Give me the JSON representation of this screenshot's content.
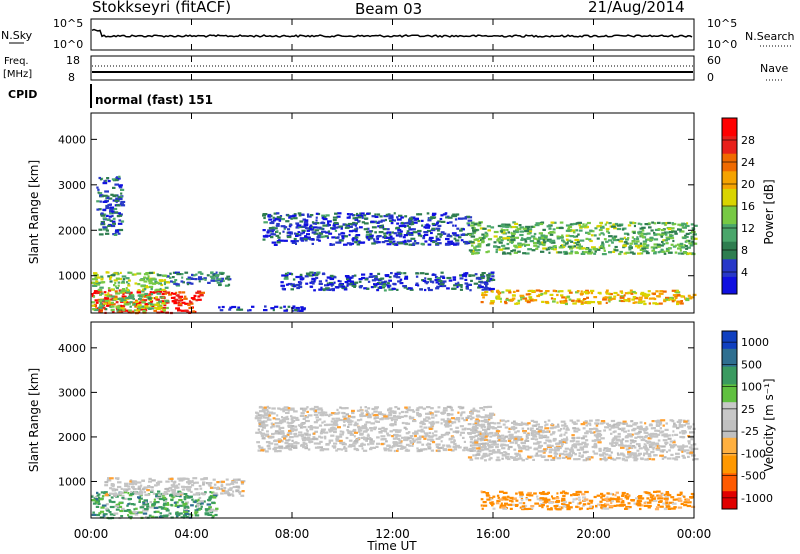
{
  "header": {
    "station": "Stokkseyri (fitACF)",
    "beam": "Beam 03",
    "date": "21/Aug/2014"
  },
  "nsky_panel": {
    "left_label": "N.Sky",
    "right_label": "N.Search",
    "left_ticks": [
      "10^5",
      "10^0"
    ],
    "right_ticks": [
      "10^5",
      "10^0"
    ]
  },
  "freq_panel": {
    "left_label_line1": "Freq.",
    "left_label_line2": "[MHz]",
    "right_label": "Nave",
    "left_ticks": [
      "18",
      "8"
    ],
    "right_ticks": [
      "60",
      "0"
    ]
  },
  "cpid_panel": {
    "label": "CPID",
    "value": "normal (fast) 151"
  },
  "colors": {
    "power_scale": [
      "#1010e0",
      "#2838c8",
      "#2e7d4f",
      "#4aa66b",
      "#77c944",
      "#d9d400",
      "#f5a300",
      "#f06a00",
      "#e8201a",
      "#ff0000"
    ],
    "velocity_scale": [
      "#e00000",
      "#ff5a00",
      "#ff9800",
      "#ffb040",
      "#c0c0c0",
      "#c8c8c8",
      "#60c040",
      "#3a9a60",
      "#2f6f90",
      "#1040c0"
    ]
  },
  "chart_data": [
    {
      "type": "heatmap",
      "title": "Power",
      "ylabel": "Slant Range [km]",
      "xlabel": "Time UT",
      "x_ticks": [
        "00:00",
        "04:00",
        "08:00",
        "12:00",
        "16:00",
        "20:00",
        "00:00"
      ],
      "y_ticks": [
        "1000",
        "2000",
        "3000",
        "4000"
      ],
      "ylim": [
        180,
        4580
      ],
      "xlim_hours": [
        0,
        24
      ],
      "colorbar_label": "Power [dB]",
      "colorbar_ticks": [
        "4",
        "8",
        "12",
        "16",
        "20",
        "24",
        "28"
      ],
      "colorbar_range": [
        0,
        32
      ],
      "regions": [
        {
          "t0": 0.0,
          "t1": 4.4,
          "r0": 200,
          "r1": 700,
          "level": 28
        },
        {
          "t0": 0.0,
          "t1": 3.0,
          "r0": 250,
          "r1": 1100,
          "level": 14
        },
        {
          "t0": 3.0,
          "t1": 5.5,
          "r0": 800,
          "r1": 1100,
          "level": 8
        },
        {
          "t0": 0.2,
          "t1": 1.2,
          "r0": 1900,
          "r1": 3200,
          "level": 6
        },
        {
          "t0": 5.0,
          "t1": 8.5,
          "r0": 250,
          "r1": 350,
          "level": 4
        },
        {
          "t0": 6.8,
          "t1": 15.0,
          "r0": 1700,
          "r1": 2400,
          "level": 5
        },
        {
          "t0": 7.5,
          "t1": 16.0,
          "r0": 700,
          "r1": 1100,
          "level": 5
        },
        {
          "t0": 15.0,
          "t1": 24.0,
          "r0": 1500,
          "r1": 2200,
          "level": 12
        },
        {
          "t0": 15.5,
          "t1": 24.0,
          "r0": 400,
          "r1": 700,
          "level": 20
        }
      ]
    },
    {
      "type": "heatmap",
      "title": "Velocity",
      "ylabel": "Slant Range [km]",
      "xlabel": "Time UT",
      "x_ticks": [
        "00:00",
        "04:00",
        "08:00",
        "12:00",
        "16:00",
        "20:00",
        "00:00"
      ],
      "y_ticks": [
        "1000",
        "2000",
        "3000",
        "4000"
      ],
      "ylim": [
        180,
        4580
      ],
      "xlim_hours": [
        0,
        24
      ],
      "colorbar_label": "Velocity [m s⁻¹]",
      "colorbar_ticks": [
        "1000",
        "500",
        "100",
        "25",
        "-25",
        "-100",
        "-500",
        "-1000"
      ],
      "regions": [
        {
          "t0": 0.0,
          "t1": 5.0,
          "r0": 200,
          "r1": 800,
          "level": "slow-toward"
        },
        {
          "t0": 0.5,
          "t1": 6.0,
          "r0": 700,
          "r1": 1100,
          "level": "near-zero"
        },
        {
          "t0": 6.5,
          "t1": 16.0,
          "r0": 1700,
          "r1": 2700,
          "level": "near-zero"
        },
        {
          "t0": 15.0,
          "t1": 24.0,
          "r0": 1500,
          "r1": 2400,
          "level": "near-zero"
        },
        {
          "t0": 15.5,
          "t1": 24.0,
          "r0": 400,
          "r1": 800,
          "level": "away"
        }
      ]
    }
  ],
  "xlabel": "Time UT"
}
